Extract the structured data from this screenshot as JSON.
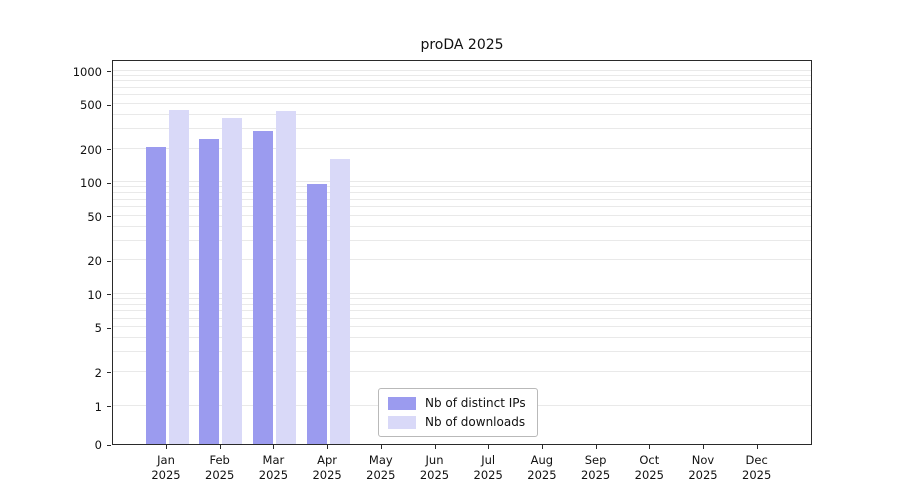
{
  "title": "proDA 2025",
  "chart_data": {
    "type": "bar",
    "title": "proDA 2025",
    "categories": [
      "Jan 2025",
      "Feb 2025",
      "Mar 2025",
      "Apr 2025",
      "May 2025",
      "Jun 2025",
      "Jul 2025",
      "Aug 2025",
      "Sep 2025",
      "Oct 2025",
      "Nov 2025",
      "Dec 2025"
    ],
    "series": [
      {
        "name": "Nb of distinct IPs",
        "color": "#9b9bef",
        "values": [
          205,
          245,
          285,
          97,
          0,
          0,
          0,
          0,
          0,
          0,
          0,
          0
        ]
      },
      {
        "name": "Nb of downloads",
        "color": "#d9d9f8",
        "values": [
          440,
          375,
          435,
          160,
          0,
          0,
          0,
          0,
          0,
          0,
          0,
          0
        ]
      }
    ],
    "xlabel": "",
    "ylabel": "",
    "y_scale": "symlog",
    "y_ticks": [
      0,
      1,
      2,
      5,
      10,
      20,
      50,
      100,
      200,
      500,
      1000
    ],
    "ylim": [
      0,
      1200
    ],
    "grid": true,
    "legend_position": "lower center"
  },
  "legend": {
    "items": [
      {
        "label": "Nb of distinct IPs",
        "color": "#9b9bef"
      },
      {
        "label": "Nb of downloads",
        "color": "#d9d9f8"
      }
    ]
  }
}
